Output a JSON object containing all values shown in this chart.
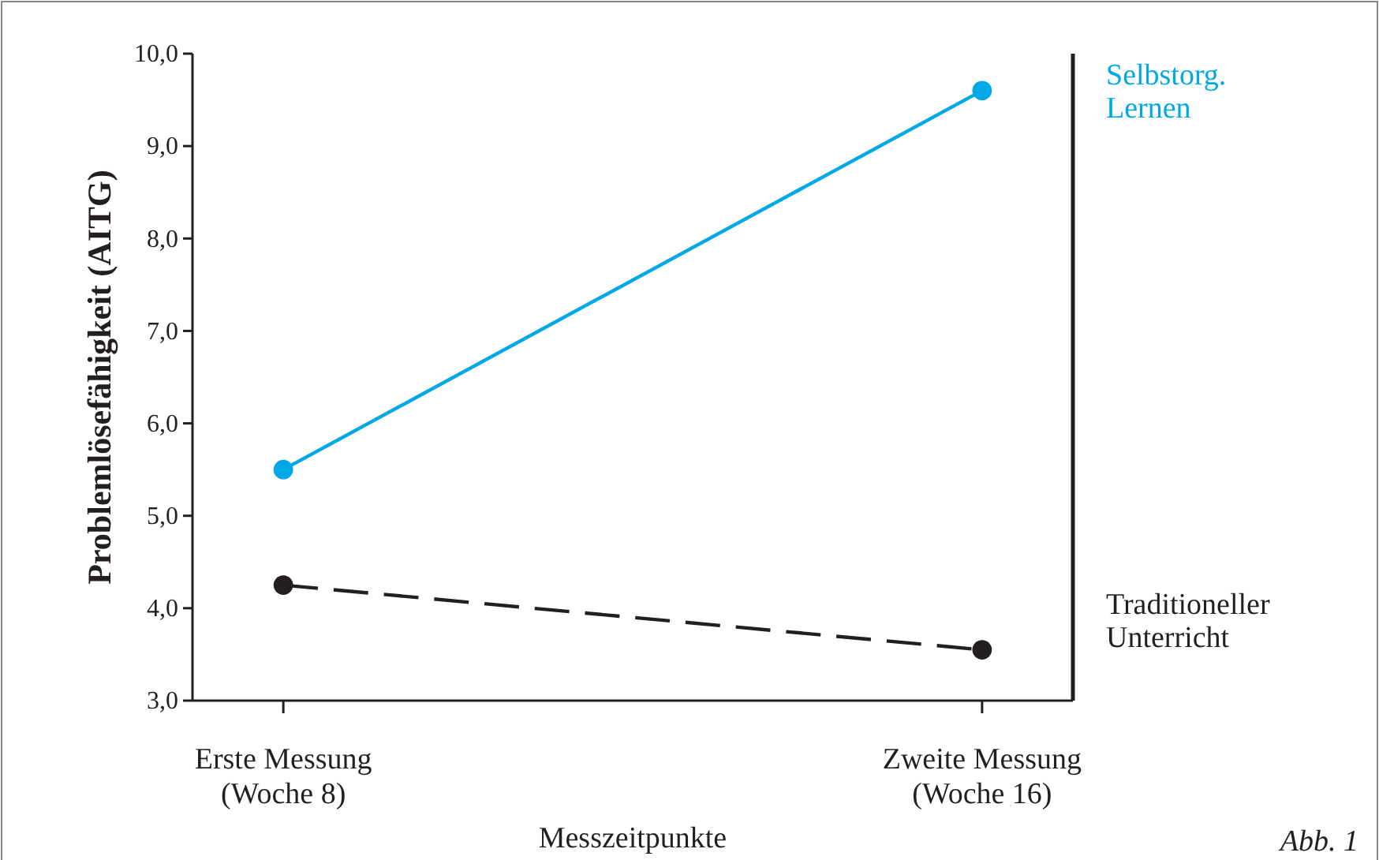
{
  "chart_data": {
    "type": "line",
    "xlabel": "Messzeitpunkte",
    "ylabel": "Problemlösefähigkeit (AITG)",
    "categories": [
      "Erste Messung\n(Woche 8)",
      "Zweite Messung\n(Woche 16)"
    ],
    "series": [
      {
        "name": "Selbstorg.\nLernen",
        "color": "#00a8e8",
        "values": [
          5.5,
          9.6
        ],
        "line_style": "solid"
      },
      {
        "name": "Traditioneller\nUnterricht",
        "color": "#231f20",
        "values": [
          4.25,
          3.55
        ],
        "line_style": "dashed"
      }
    ],
    "ylim": [
      3,
      10
    ],
    "yticks": [
      {
        "value": 3,
        "label": "3,0"
      },
      {
        "value": 4,
        "label": "4,0"
      },
      {
        "value": 5,
        "label": "5,0"
      },
      {
        "value": 6,
        "label": "6,0"
      },
      {
        "value": 7,
        "label": "7,0"
      },
      {
        "value": 8,
        "label": "8,0"
      },
      {
        "value": 9,
        "label": "9,0"
      },
      {
        "value": 10,
        "label": "10,0"
      }
    ],
    "marker": "circle",
    "legend": "right",
    "grid": false,
    "annotations": [
      "Abb. 1"
    ]
  }
}
